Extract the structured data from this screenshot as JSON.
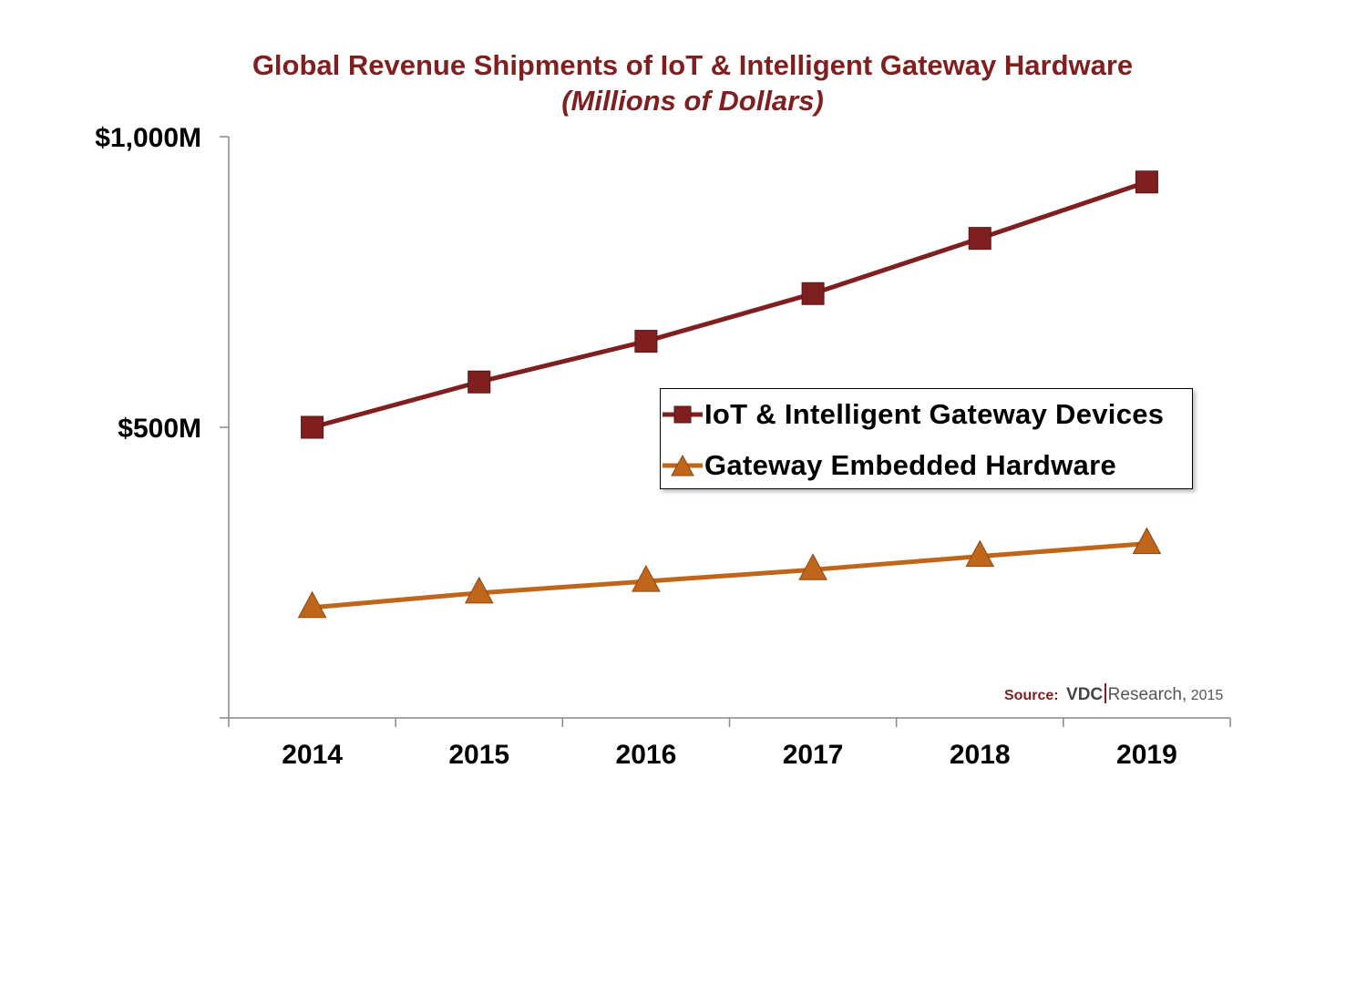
{
  "chart_data": {
    "type": "line",
    "title": "Global Revenue Shipments of IoT & Intelligent Gateway Hardware",
    "subtitle": "(Millions of Dollars)",
    "xlabel": "",
    "ylabel": "",
    "categories": [
      "2014",
      "2015",
      "2016",
      "2017",
      "2018",
      "2019"
    ],
    "ylim": [
      0,
      1000
    ],
    "yticks": [
      {
        "value": 500,
        "label": "$500M"
      },
      {
        "value": 1000,
        "label": "$1,000M"
      }
    ],
    "grid": false,
    "legend_position": "center-right",
    "series": [
      {
        "name": "IoT & Intelligent Gateway Devices",
        "marker": "square",
        "color": "#7f1f1f",
        "values": [
          500,
          578,
          648,
          730,
          825,
          922
        ]
      },
      {
        "name": "Gateway Embedded Hardware",
        "marker": "triangle",
        "color": "#c0661a",
        "values": [
          190,
          215,
          235,
          255,
          278,
          300
        ]
      }
    ]
  },
  "source": {
    "prefix": "Source:",
    "brand": "VDC",
    "suffix": "Research,",
    "year": "2015"
  }
}
